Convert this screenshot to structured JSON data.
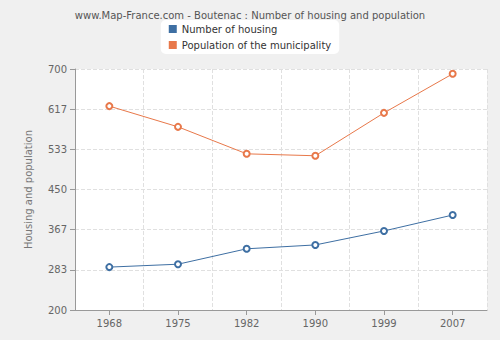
{
  "chart_data": {
    "type": "line",
    "title": "www.Map-France.com - Boutenac : Number of housing and population",
    "ylabel": "Housing and population",
    "categories": [
      "1968",
      "1975",
      "1982",
      "1990",
      "1999",
      "2007"
    ],
    "series": [
      {
        "name": "Number of housing",
        "color": "#3e6fa3",
        "marker": "circle",
        "values": [
          289,
          295,
          327,
          335,
          364,
          397
        ]
      },
      {
        "name": "Population of the municipality",
        "color": "#e8784a",
        "marker": "circle",
        "values": [
          623,
          580,
          524,
          520,
          609,
          690
        ]
      }
    ],
    "ylim": [
      200,
      700
    ],
    "yticks": [
      200,
      283,
      367,
      450,
      533,
      617,
      700
    ],
    "grid": true,
    "legend": "top"
  }
}
